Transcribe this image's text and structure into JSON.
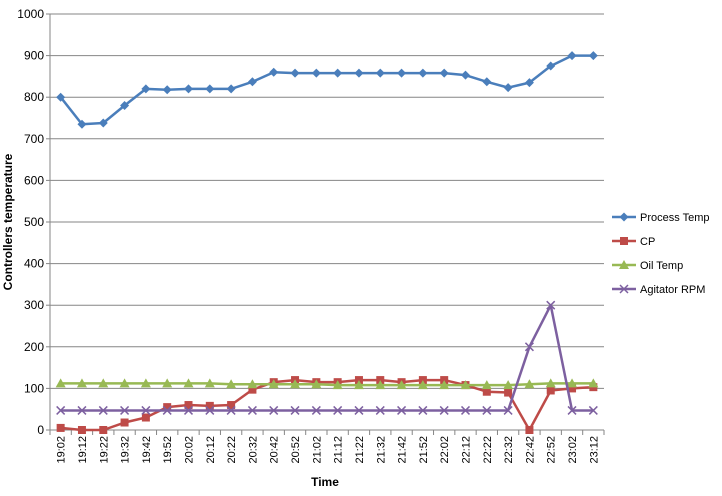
{
  "chart_data": {
    "type": "line",
    "xlabel": "Time",
    "ylabel": "Controllers temperature",
    "ylim": [
      0,
      1000
    ],
    "yticks": [
      0,
      100,
      200,
      300,
      400,
      500,
      600,
      700,
      800,
      900,
      1000
    ],
    "grid": "horizontal-major",
    "legend_position": "right",
    "categories": [
      "19:02",
      "19:12",
      "19:22",
      "19:32",
      "19:42",
      "19:52",
      "20:02",
      "20:12",
      "20:22",
      "20:32",
      "20:42",
      "20:52",
      "21:02",
      "21:12",
      "21:22",
      "21:32",
      "21:42",
      "21:52",
      "22:02",
      "22:12",
      "22:22",
      "22:32",
      "22:42",
      "22:52",
      "23:02",
      "23:12"
    ],
    "series": [
      {
        "name": "Process Temp",
        "color": "#4a7ebb",
        "marker": "diamond",
        "values": [
          800,
          735,
          738,
          780,
          820,
          818,
          820,
          820,
          820,
          837,
          860,
          858,
          858,
          858,
          858,
          858,
          858,
          858,
          858,
          853,
          837,
          823,
          835,
          875,
          900,
          900
        ]
      },
      {
        "name": "CP",
        "color": "#be4b48",
        "marker": "square",
        "values": [
          5,
          0,
          0,
          18,
          30,
          55,
          60,
          58,
          60,
          97,
          115,
          120,
          115,
          115,
          120,
          120,
          115,
          120,
          120,
          108,
          92,
          90,
          0,
          95,
          100,
          103
        ]
      },
      {
        "name": "Oil Temp",
        "color": "#98b954",
        "marker": "triangle",
        "values": [
          112,
          112,
          112,
          112,
          112,
          112,
          112,
          112,
          110,
          110,
          110,
          110,
          110,
          108,
          108,
          108,
          108,
          108,
          108,
          108,
          108,
          108,
          110,
          112,
          112,
          112
        ]
      },
      {
        "name": "Agitator RPM",
        "color": "#7d60a0",
        "marker": "x",
        "values": [
          47,
          47,
          47,
          47,
          47,
          47,
          47,
          47,
          47,
          47,
          47,
          47,
          47,
          47,
          47,
          47,
          47,
          47,
          47,
          47,
          47,
          47,
          200,
          300,
          47,
          47
        ]
      }
    ]
  }
}
